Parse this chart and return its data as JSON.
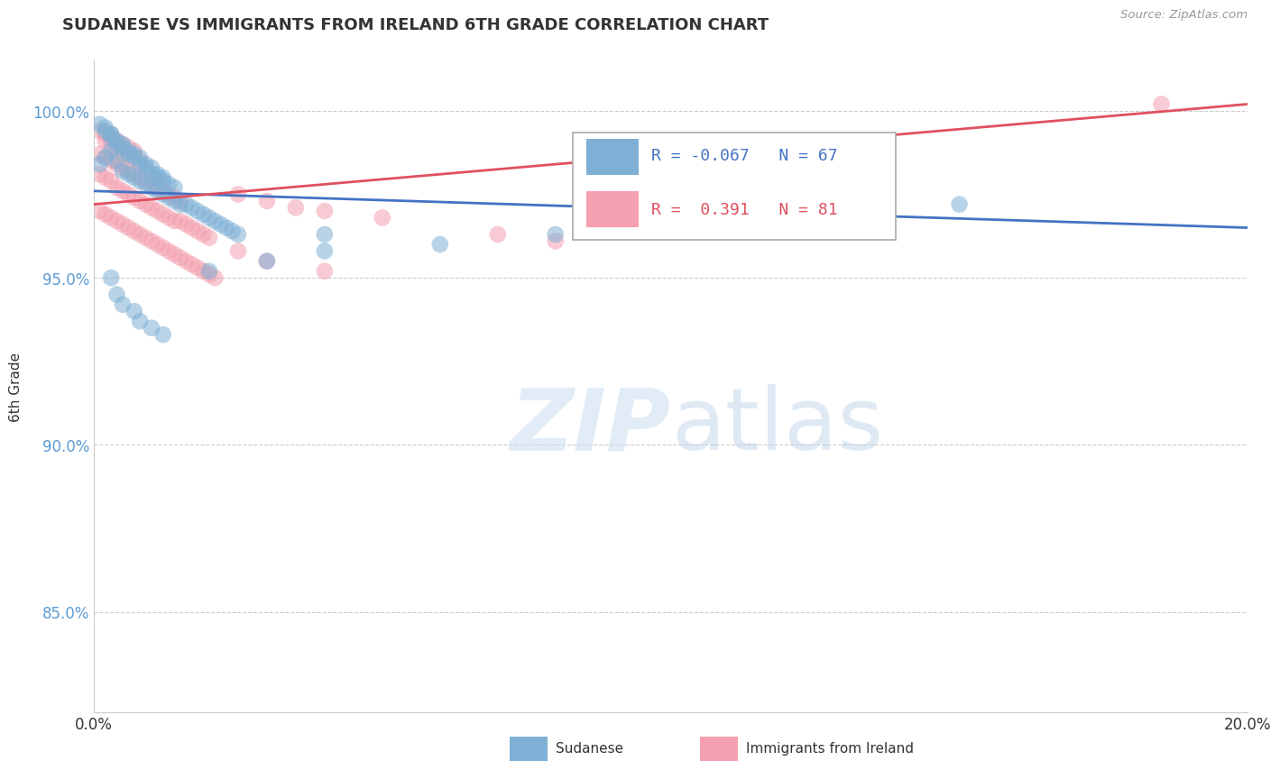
{
  "title": "SUDANESE VS IMMIGRANTS FROM IRELAND 6TH GRADE CORRELATION CHART",
  "source": "Source: ZipAtlas.com",
  "ylabel": "6th Grade",
  "xlim": [
    0.0,
    0.2
  ],
  "ylim": [
    0.82,
    1.015
  ],
  "yticks": [
    0.85,
    0.9,
    0.95,
    1.0
  ],
  "ytick_labels": [
    "85.0%",
    "90.0%",
    "95.0%",
    "100.0%"
  ],
  "r_sudanese": -0.067,
  "n_sudanese": 67,
  "r_ireland": 0.391,
  "n_ireland": 81,
  "color_sudanese": "#7EB0D5",
  "color_ireland": "#F4A0B0",
  "color_trend_sudanese": "#4472C4",
  "color_trend_ireland": "#E05060",
  "sue_trend_x0": 0.0,
  "sue_trend_y0": 0.976,
  "sue_trend_x1": 0.2,
  "sue_trend_y1": 0.965,
  "ire_trend_x0": 0.0,
  "ire_trend_y0": 0.972,
  "ire_trend_x1": 0.2,
  "ire_trend_y1": 1.002,
  "sudanese_x": [
    0.001,
    0.002,
    0.003,
    0.004,
    0.005,
    0.006,
    0.007,
    0.008,
    0.009,
    0.01,
    0.011,
    0.012,
    0.013,
    0.014,
    0.015,
    0.016,
    0.017,
    0.018,
    0.019,
    0.02,
    0.021,
    0.022,
    0.023,
    0.024,
    0.025,
    0.003,
    0.004,
    0.005,
    0.006,
    0.007,
    0.008,
    0.009,
    0.01,
    0.011,
    0.012,
    0.013,
    0.014,
    0.002,
    0.003,
    0.004,
    0.005,
    0.006,
    0.007,
    0.008,
    0.009,
    0.01,
    0.011,
    0.012,
    0.001,
    0.002,
    0.003,
    0.04,
    0.1,
    0.02,
    0.03,
    0.04,
    0.06,
    0.08,
    0.12,
    0.15,
    0.003,
    0.004,
    0.005,
    0.007,
    0.008,
    0.01,
    0.012
  ],
  "sudanese_y": [
    0.984,
    0.986,
    0.988,
    0.985,
    0.982,
    0.981,
    0.98,
    0.979,
    0.978,
    0.977,
    0.976,
    0.975,
    0.974,
    0.973,
    0.972,
    0.972,
    0.971,
    0.97,
    0.969,
    0.968,
    0.967,
    0.966,
    0.965,
    0.964,
    0.963,
    0.992,
    0.99,
    0.989,
    0.987,
    0.986,
    0.984,
    0.983,
    0.981,
    0.98,
    0.979,
    0.978,
    0.977,
    0.994,
    0.993,
    0.991,
    0.99,
    0.988,
    0.987,
    0.986,
    0.984,
    0.983,
    0.981,
    0.98,
    0.996,
    0.995,
    0.993,
    0.963,
    0.972,
    0.952,
    0.955,
    0.958,
    0.96,
    0.963,
    0.967,
    0.972,
    0.95,
    0.945,
    0.942,
    0.94,
    0.937,
    0.935,
    0.933
  ],
  "ireland_x": [
    0.001,
    0.002,
    0.003,
    0.004,
    0.005,
    0.006,
    0.007,
    0.008,
    0.009,
    0.01,
    0.011,
    0.012,
    0.013,
    0.014,
    0.015,
    0.016,
    0.017,
    0.018,
    0.019,
    0.02,
    0.001,
    0.002,
    0.003,
    0.004,
    0.005,
    0.006,
    0.007,
    0.008,
    0.009,
    0.01,
    0.011,
    0.012,
    0.013,
    0.014,
    0.015,
    0.002,
    0.003,
    0.004,
    0.005,
    0.006,
    0.007,
    0.008,
    0.001,
    0.002,
    0.003,
    0.004,
    0.005,
    0.006,
    0.007,
    0.025,
    0.03,
    0.035,
    0.04,
    0.05,
    0.025,
    0.03,
    0.04,
    0.07,
    0.08,
    0.185,
    0.001,
    0.002,
    0.003,
    0.004,
    0.005,
    0.006,
    0.007,
    0.008,
    0.009,
    0.01,
    0.011,
    0.012,
    0.013,
    0.014,
    0.015,
    0.016,
    0.017,
    0.018,
    0.019,
    0.02,
    0.021
  ],
  "ireland_y": [
    0.981,
    0.98,
    0.979,
    0.977,
    0.976,
    0.975,
    0.974,
    0.973,
    0.972,
    0.971,
    0.97,
    0.969,
    0.968,
    0.967,
    0.967,
    0.966,
    0.965,
    0.964,
    0.963,
    0.962,
    0.987,
    0.986,
    0.985,
    0.984,
    0.983,
    0.982,
    0.981,
    0.98,
    0.979,
    0.978,
    0.977,
    0.976,
    0.975,
    0.974,
    0.973,
    0.991,
    0.99,
    0.989,
    0.988,
    0.987,
    0.986,
    0.985,
    0.994,
    0.993,
    0.992,
    0.991,
    0.99,
    0.989,
    0.988,
    0.975,
    0.973,
    0.971,
    0.97,
    0.968,
    0.958,
    0.955,
    0.952,
    0.963,
    0.961,
    1.002,
    0.97,
    0.969,
    0.968,
    0.967,
    0.966,
    0.965,
    0.964,
    0.963,
    0.962,
    0.961,
    0.96,
    0.959,
    0.958,
    0.957,
    0.956,
    0.955,
    0.954,
    0.953,
    0.952,
    0.951,
    0.95
  ]
}
